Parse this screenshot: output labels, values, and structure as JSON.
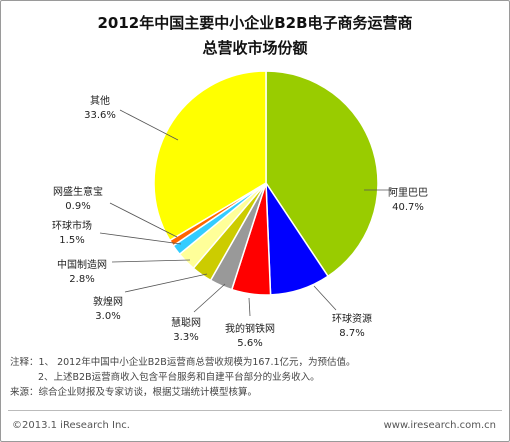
{
  "chart_data": {
    "type": "pie",
    "title_line1": "2012年中国主要中小企业B2B电子商务运营商",
    "title_line2": "总营收市场份额",
    "slices": [
      {
        "label": "阿里巴巴",
        "value": 40.7,
        "value_label": "40.7%",
        "color": "#99cc00"
      },
      {
        "label": "环球资源",
        "value": 8.7,
        "value_label": "8.7%",
        "color": "#0000ff"
      },
      {
        "label": "我的钢铁网",
        "value": 5.6,
        "value_label": "5.6%",
        "color": "#ff0000"
      },
      {
        "label": "慧聪网",
        "value": 3.3,
        "value_label": "3.3%",
        "color": "#999999"
      },
      {
        "label": "敦煌网",
        "value": 3.0,
        "value_label": "3.0%",
        "color": "#cccc00"
      },
      {
        "label": "中国制造网",
        "value": 2.8,
        "value_label": "2.8%",
        "color": "#ffff99"
      },
      {
        "label": "环球市场",
        "value": 1.5,
        "value_label": "1.5%",
        "color": "#33ccff"
      },
      {
        "label": "网盛生意宝",
        "value": 0.9,
        "value_label": "0.9%",
        "color": "#ff6600"
      },
      {
        "label": "其他",
        "value": 33.6,
        "value_label": "33.6%",
        "color": "#ffff00"
      }
    ]
  },
  "notes": {
    "line1": "注释：1、 2012年中国中小企业B2B运营商总营收规模为167.1亿元，为预估值。",
    "line2": "2、上述B2B运营商收入包含平台服务和自建平台部分的业务收入。",
    "line3": "来源：综合企业财报及专家访谈，根据艾瑞统计模型核算。"
  },
  "footer": {
    "copyright": "©2013.1 iResearch Inc.",
    "website": "www.iresearch.com.cn"
  }
}
